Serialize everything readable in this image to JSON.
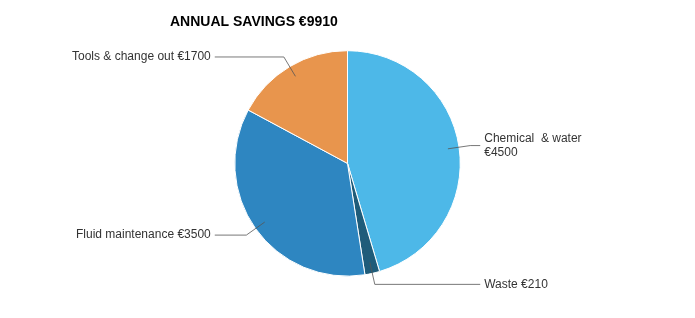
{
  "chart_data": {
    "type": "pie",
    "title": "ANNUAL SAVINGS €9910",
    "categories": [
      "Chemical  & water\n€4500",
      "Waste €210",
      "Fluid maintenance €3500",
      "Tools & change out €1700"
    ],
    "values": [
      4500,
      210,
      3500,
      1700
    ],
    "colors": [
      "#4db8e8",
      "#1f5c7a",
      "#2e86c1",
      "#e8954d"
    ]
  }
}
